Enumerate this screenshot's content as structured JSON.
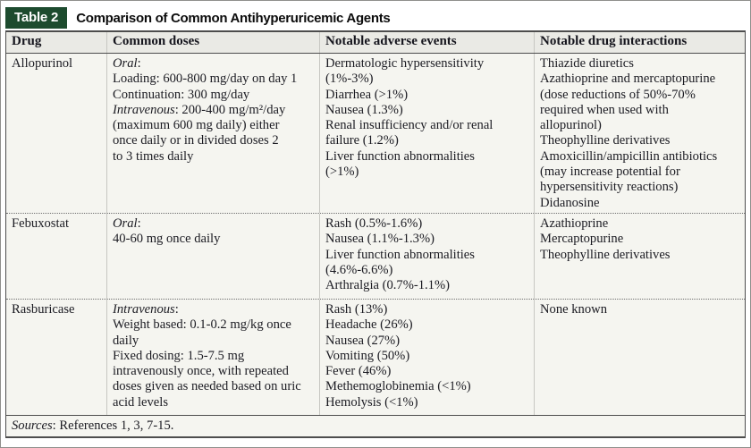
{
  "page": {
    "table_label": "Table 2",
    "title": "Comparison of Common Antihyperuricemic Agents",
    "sources": {
      "em": "Sources",
      "text": ": References 1, 3, 7-15."
    }
  },
  "colors": {
    "chip_green": "#1d4b2e",
    "header_bg": "#eaeae5",
    "body_bg": "#f5f5f0",
    "frame": "#4d4d4d",
    "column_divider": "#c7c7c2",
    "text": "#1b1b22"
  },
  "table": {
    "columns": [
      "Drug",
      "Common doses",
      "Notable adverse events",
      "Notable drug interactions"
    ],
    "rows": [
      {
        "drug": "Allopurinol",
        "doses": [
          {
            "em": "Oral",
            "text": ":"
          },
          "Loading: 600-800 mg/day on day 1",
          "Continuation: 300 mg/day",
          {
            "em": "Intravenous",
            "text": ": 200-400 mg/m²/day"
          },
          "(maximum 600 mg daily) either",
          "once daily or in divided doses 2",
          "to 3 times daily"
        ],
        "adverse_events": [
          "Dermatologic hypersensitivity",
          "(1%-3%)",
          "Diarrhea (>1%)",
          "Nausea (1.3%)",
          "Renal insufficiency and/or renal",
          "failure (1.2%)",
          "Liver function abnormalities",
          "(>1%)"
        ],
        "interactions": [
          "Thiazide diuretics",
          "Azathioprine and mercaptopurine",
          "(dose reductions of 50%-70%",
          "required when used with",
          "allopurinol)",
          "Theophylline derivatives",
          "Amoxicillin/ampicillin antibiotics",
          "(may increase potential for",
          "hypersensitivity reactions)",
          "Didanosine"
        ]
      },
      {
        "drug": "Febuxostat",
        "doses": [
          {
            "em": "Oral",
            "text": ":"
          },
          "40-60 mg once daily"
        ],
        "adverse_events": [
          "Rash (0.5%-1.6%)",
          "Nausea (1.1%-1.3%)",
          "Liver function abnormalities",
          "(4.6%-6.6%)",
          "Arthralgia (0.7%-1.1%)"
        ],
        "interactions": [
          "Azathioprine",
          "Mercaptopurine",
          "Theophylline derivatives"
        ]
      },
      {
        "drug": "Rasburicase",
        "doses": [
          {
            "em": "Intravenous",
            "text": ":"
          },
          "Weight based: 0.1-0.2 mg/kg once",
          "daily",
          "Fixed dosing: 1.5-7.5 mg",
          "intravenously once, with repeated",
          "doses given as needed based on uric",
          "acid levels"
        ],
        "adverse_events": [
          "Rash (13%)",
          "Headache (26%)",
          "Nausea (27%)",
          "Vomiting (50%)",
          "Fever (46%)",
          "Methemoglobinemia (<1%)",
          "Hemolysis (<1%)"
        ],
        "interactions": [
          "None known"
        ]
      }
    ]
  }
}
